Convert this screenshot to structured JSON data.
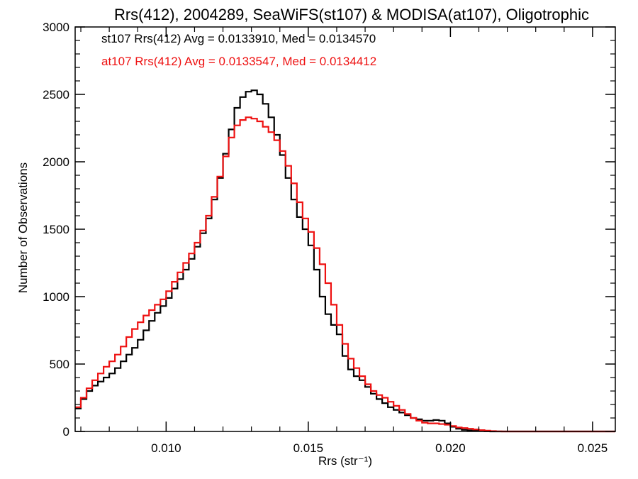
{
  "chart_data": {
    "type": "line",
    "step": true,
    "title": "Rrs(412), 2004289, SeaWiFS(st107) & MODISA(at107), Oligotrophic",
    "xlabel": "Rrs (str⁻¹)",
    "ylabel": "Number of Observations",
    "xlim": [
      0.0068,
      0.0258
    ],
    "ylim": [
      0,
      3000
    ],
    "xticks": [
      0.01,
      0.015,
      0.02,
      0.025
    ],
    "xtick_labels": [
      "0.010",
      "0.015",
      "0.020",
      "0.025"
    ],
    "yticks": [
      0,
      500,
      1000,
      1500,
      2000,
      2500,
      3000
    ],
    "ytick_labels": [
      "0",
      "500",
      "1000",
      "1500",
      "2000",
      "2500",
      "3000"
    ],
    "grid": false,
    "legend_placement": "top-left",
    "colors": {
      "st107": "#000000",
      "at107": "#ee1111"
    },
    "annotations": [
      {
        "text": "st107 Rrs(412) Avg = 0.0133910, Med = 0.0134570",
        "color": "#000000"
      },
      {
        "text": "at107 Rrs(412) Avg = 0.0133547, Med = 0.0134412",
        "color": "#ee1111"
      }
    ],
    "series": [
      {
        "color": "#000000",
        "x": [
          0.0068,
          0.007,
          0.0072,
          0.0074,
          0.0076,
          0.0078,
          0.008,
          0.0082,
          0.0084,
          0.0086,
          0.0088,
          0.009,
          0.0092,
          0.0094,
          0.0096,
          0.0098,
          0.01,
          0.0102,
          0.0104,
          0.0106,
          0.0108,
          0.011,
          0.0112,
          0.0114,
          0.0116,
          0.0118,
          0.012,
          0.0122,
          0.0124,
          0.0126,
          0.0128,
          0.013,
          0.0132,
          0.0134,
          0.0136,
          0.0138,
          0.014,
          0.0142,
          0.0144,
          0.0146,
          0.0148,
          0.015,
          0.0152,
          0.0154,
          0.0156,
          0.0158,
          0.016,
          0.0162,
          0.0164,
          0.0166,
          0.0168,
          0.017,
          0.0172,
          0.0174,
          0.0176,
          0.0178,
          0.018,
          0.0182,
          0.0184,
          0.0186,
          0.0188,
          0.019,
          0.0192,
          0.0194,
          0.0196,
          0.0198,
          0.02,
          0.0202,
          0.0204,
          0.0206,
          0.0208,
          0.021,
          0.0212,
          0.0214,
          0.0216,
          0.0218,
          0.022,
          0.0222,
          0.0224,
          0.0226,
          0.0228,
          0.023,
          0.0232,
          0.0234,
          0.0236,
          0.0238,
          0.024,
          0.0242,
          0.0244,
          0.0246,
          0.0248,
          0.025,
          0.0252,
          0.0254,
          0.0256
        ],
        "values": [
          170,
          240,
          300,
          340,
          370,
          400,
          430,
          470,
          520,
          570,
          620,
          680,
          750,
          820,
          880,
          930,
          990,
          1060,
          1130,
          1200,
          1280,
          1370,
          1470,
          1580,
          1720,
          1880,
          2060,
          2240,
          2400,
          2480,
          2520,
          2530,
          2500,
          2430,
          2330,
          2200,
          2050,
          1880,
          1720,
          1590,
          1500,
          1380,
          1200,
          1000,
          870,
          790,
          720,
          560,
          460,
          410,
          380,
          330,
          280,
          240,
          210,
          180,
          160,
          140,
          120,
          100,
          90,
          80,
          80,
          85,
          80,
          60,
          35,
          20,
          12,
          8,
          5,
          3,
          1,
          0,
          0,
          0,
          0,
          0,
          0,
          0,
          0,
          0,
          0,
          0,
          0,
          0,
          0,
          0,
          0,
          0,
          0,
          0,
          0,
          0,
          0
        ]
      },
      {
        "color": "#ee1111",
        "x": [
          0.0068,
          0.007,
          0.0072,
          0.0074,
          0.0076,
          0.0078,
          0.008,
          0.0082,
          0.0084,
          0.0086,
          0.0088,
          0.009,
          0.0092,
          0.0094,
          0.0096,
          0.0098,
          0.01,
          0.0102,
          0.0104,
          0.0106,
          0.0108,
          0.011,
          0.0112,
          0.0114,
          0.0116,
          0.0118,
          0.012,
          0.0122,
          0.0124,
          0.0126,
          0.0128,
          0.013,
          0.0132,
          0.0134,
          0.0136,
          0.0138,
          0.014,
          0.0142,
          0.0144,
          0.0146,
          0.0148,
          0.015,
          0.0152,
          0.0154,
          0.0156,
          0.0158,
          0.016,
          0.0162,
          0.0164,
          0.0166,
          0.0168,
          0.017,
          0.0172,
          0.0174,
          0.0176,
          0.0178,
          0.018,
          0.0182,
          0.0184,
          0.0186,
          0.0188,
          0.019,
          0.0192,
          0.0194,
          0.0196,
          0.0198,
          0.02,
          0.0202,
          0.0204,
          0.0206,
          0.0208,
          0.021,
          0.0212,
          0.0214,
          0.0216,
          0.0218,
          0.022,
          0.0222,
          0.0224,
          0.0226,
          0.0228,
          0.023,
          0.0232,
          0.0234,
          0.0236,
          0.0238,
          0.024,
          0.0242,
          0.0244,
          0.0246,
          0.0248,
          0.025,
          0.0252,
          0.0254,
          0.0256
        ],
        "values": [
          180,
          250,
          320,
          380,
          430,
          480,
          520,
          570,
          630,
          700,
          760,
          810,
          860,
          900,
          940,
          980,
          1040,
          1110,
          1180,
          1250,
          1320,
          1400,
          1490,
          1600,
          1740,
          1890,
          2040,
          2180,
          2270,
          2310,
          2330,
          2320,
          2300,
          2260,
          2220,
          2160,
          2080,
          1970,
          1840,
          1700,
          1580,
          1480,
          1360,
          1240,
          1100,
          940,
          790,
          650,
          540,
          470,
          410,
          350,
          300,
          270,
          250,
          220,
          190,
          160,
          130,
          100,
          80,
          65,
          60,
          60,
          55,
          50,
          40,
          30,
          25,
          20,
          15,
          10,
          6,
          3,
          1,
          0,
          0,
          0,
          0,
          0,
          0,
          0,
          0,
          0,
          0,
          0,
          0,
          0,
          0,
          0,
          0,
          0,
          0,
          0,
          0
        ]
      }
    ]
  }
}
